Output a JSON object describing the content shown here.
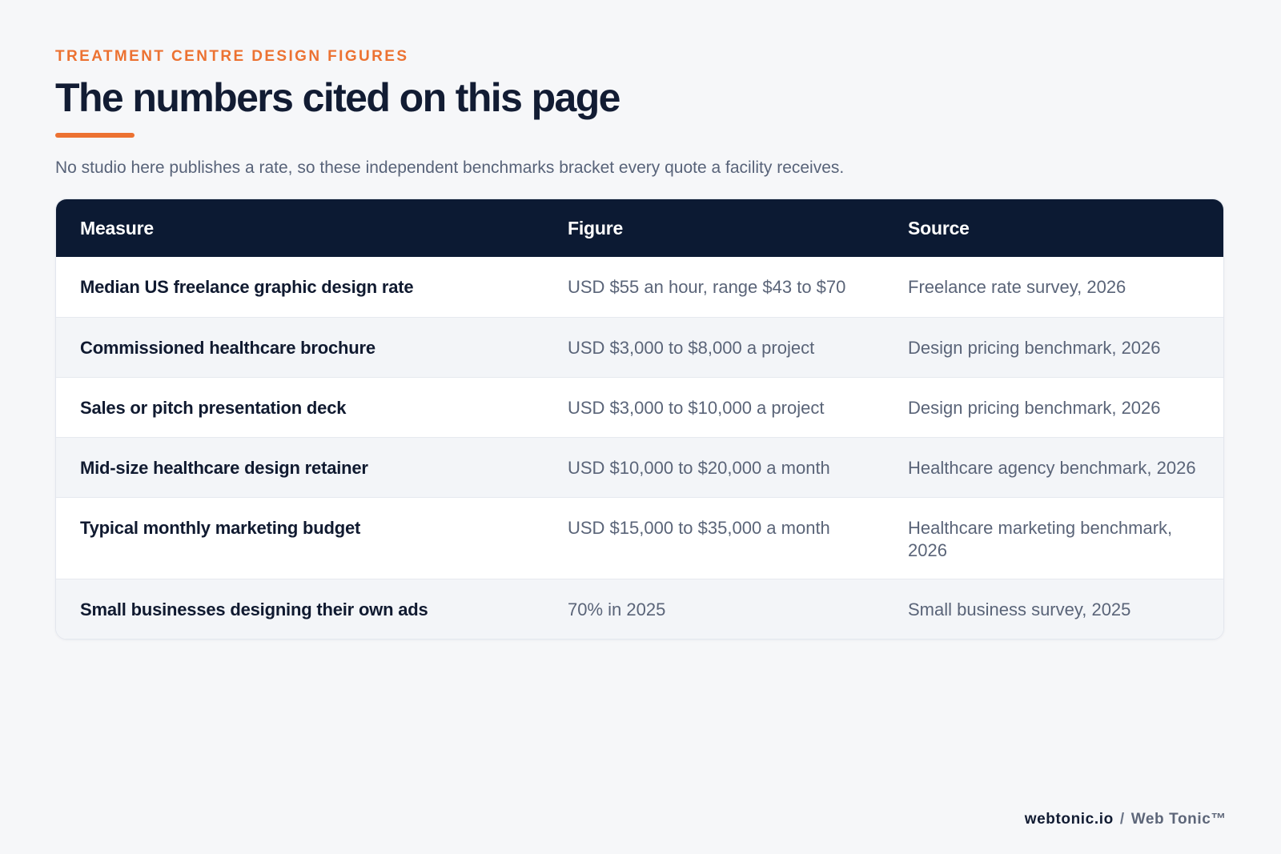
{
  "header": {
    "eyebrow": "TREATMENT CENTRE DESIGN FIGURES",
    "title": "The numbers cited on this page",
    "subtitle": "No studio here publishes a rate, so these independent benchmarks bracket every quote a facility receives."
  },
  "table": {
    "columns": [
      "Measure",
      "Figure",
      "Source"
    ],
    "rows": [
      {
        "measure": "Median US freelance graphic design rate",
        "figure": "USD $55 an hour, range $43 to $70",
        "source": "Freelance rate survey, 2026"
      },
      {
        "measure": "Commissioned healthcare brochure",
        "figure": "USD $3,000 to $8,000 a project",
        "source": "Design pricing benchmark, 2026"
      },
      {
        "measure": "Sales or pitch presentation deck",
        "figure": "USD $3,000 to $10,000 a project",
        "source": "Design pricing benchmark, 2026"
      },
      {
        "measure": "Mid-size healthcare design retainer",
        "figure": "USD $10,000 to $20,000 a month",
        "source": "Healthcare agency benchmark, 2026"
      },
      {
        "measure": "Typical monthly marketing budget",
        "figure": "USD $15,000 to $35,000 a month",
        "source": "Healthcare marketing benchmark, 2026"
      },
      {
        "measure": "Small businesses designing their own ads",
        "figure": "70% in 2025",
        "source": "Small business survey, 2025"
      }
    ]
  },
  "footer": {
    "domain": "webtonic.io",
    "separator": "/",
    "brand": "Web Tonic™"
  },
  "colors": {
    "accent": "#ec7232",
    "header_bg": "#0c1a33",
    "page_bg": "#f6f7f9"
  }
}
